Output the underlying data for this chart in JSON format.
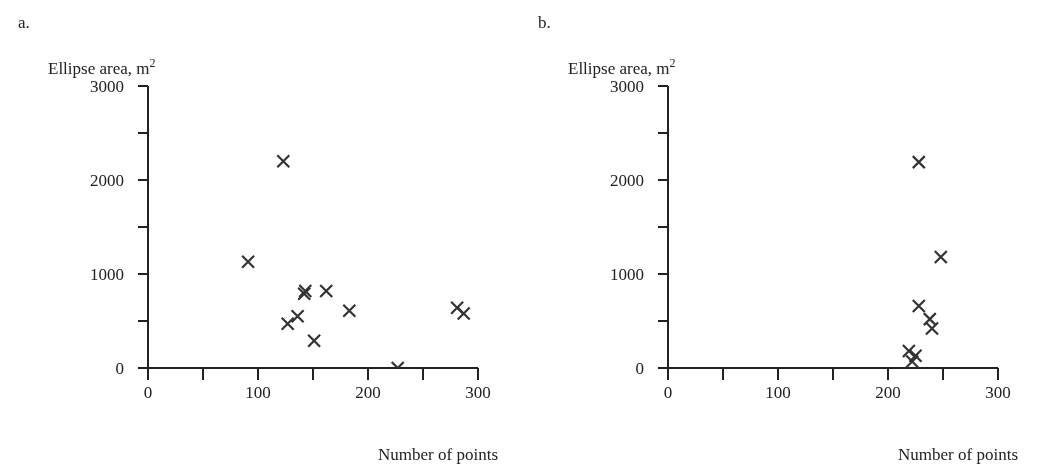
{
  "chart_data": [
    {
      "type": "scatter",
      "title": "a.",
      "ylabel": "Ellipse area, m$^{2}$",
      "xlabel": "Number of points",
      "marker": "cross",
      "grid": false,
      "legend": false,
      "series": [
        {
          "color": "#333333",
          "x": [
            123,
            91,
            127,
            136,
            142,
            143,
            162,
            151,
            183,
            281,
            287,
            227
          ],
          "values": [
            2200,
            1130,
            470,
            550,
            790,
            820,
            820,
            290,
            610,
            640,
            580,
            0
          ]
        }
      ],
      "xlim": [
        0,
        300
      ],
      "xticks": [
        0,
        {
          "value": 50,
          "label": null
        },
        100,
        {
          "value": 150,
          "label": null
        },
        200,
        {
          "value": 250,
          "label": null
        },
        300
      ],
      "ylim": [
        0,
        3000
      ],
      "yticks": [
        0,
        {
          "value": 500,
          "label": null
        },
        1000,
        {
          "value": 1500,
          "label": null
        },
        2000,
        {
          "value": 2500,
          "label": null
        },
        3000
      ]
    },
    {
      "type": "scatter",
      "title": "b.",
      "ylabel": "Ellipse area, m$^{2}$",
      "xlabel": "Number of points",
      "marker": "cross",
      "grid": false,
      "legend": false,
      "series": [
        {
          "color": "#333333",
          "x": [
            228,
            248,
            228,
            238,
            240,
            219,
            225,
            222
          ],
          "values": [
            2190,
            1180,
            660,
            520,
            420,
            180,
            130,
            70
          ]
        }
      ],
      "xlim": [
        0,
        300
      ],
      "xticks": [
        0,
        {
          "value": 50,
          "label": null
        },
        100,
        {
          "value": 150,
          "label": null
        },
        200,
        {
          "value": 250,
          "label": null
        },
        300
      ],
      "ylim": [
        0,
        3000
      ],
      "yticks": [
        0,
        {
          "value": 500,
          "label": null
        },
        1000,
        {
          "value": 1500,
          "label": null
        },
        2000,
        {
          "value": 2500,
          "label": null
        },
        3000
      ]
    }
  ]
}
